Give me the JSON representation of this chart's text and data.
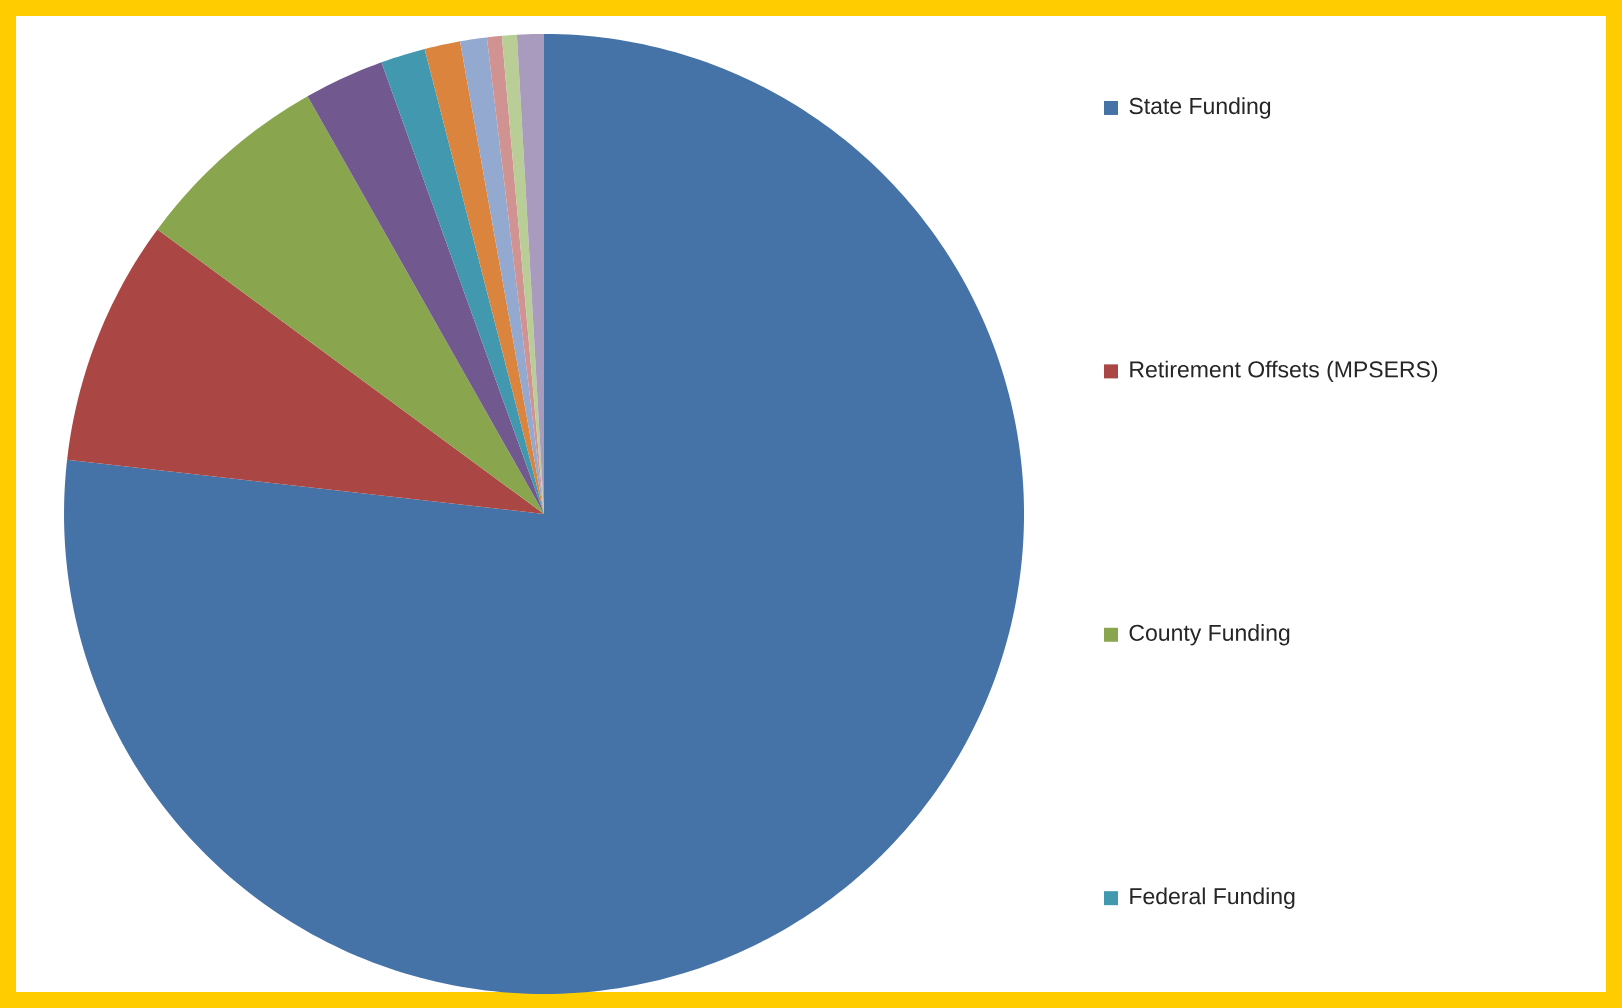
{
  "chart_data": {
    "type": "pie",
    "legend": "right",
    "categories": [
      "State Funding",
      "Retirement Offsets (MPSERS)",
      "County Funding",
      null,
      "Federal Funding",
      null,
      null,
      null,
      null,
      null
    ],
    "values": [
      76.8,
      8.3,
      6.7,
      2.7,
      1.5,
      1.2,
      0.9,
      0.5,
      0.5,
      0.9
    ],
    "colors": [
      "#4572a7",
      "#aa4643",
      "#89a54e",
      "#71588f",
      "#4198af",
      "#db843d",
      "#93a9cf",
      "#d19392",
      "#b9cd96",
      "#a99bbd"
    ]
  }
}
